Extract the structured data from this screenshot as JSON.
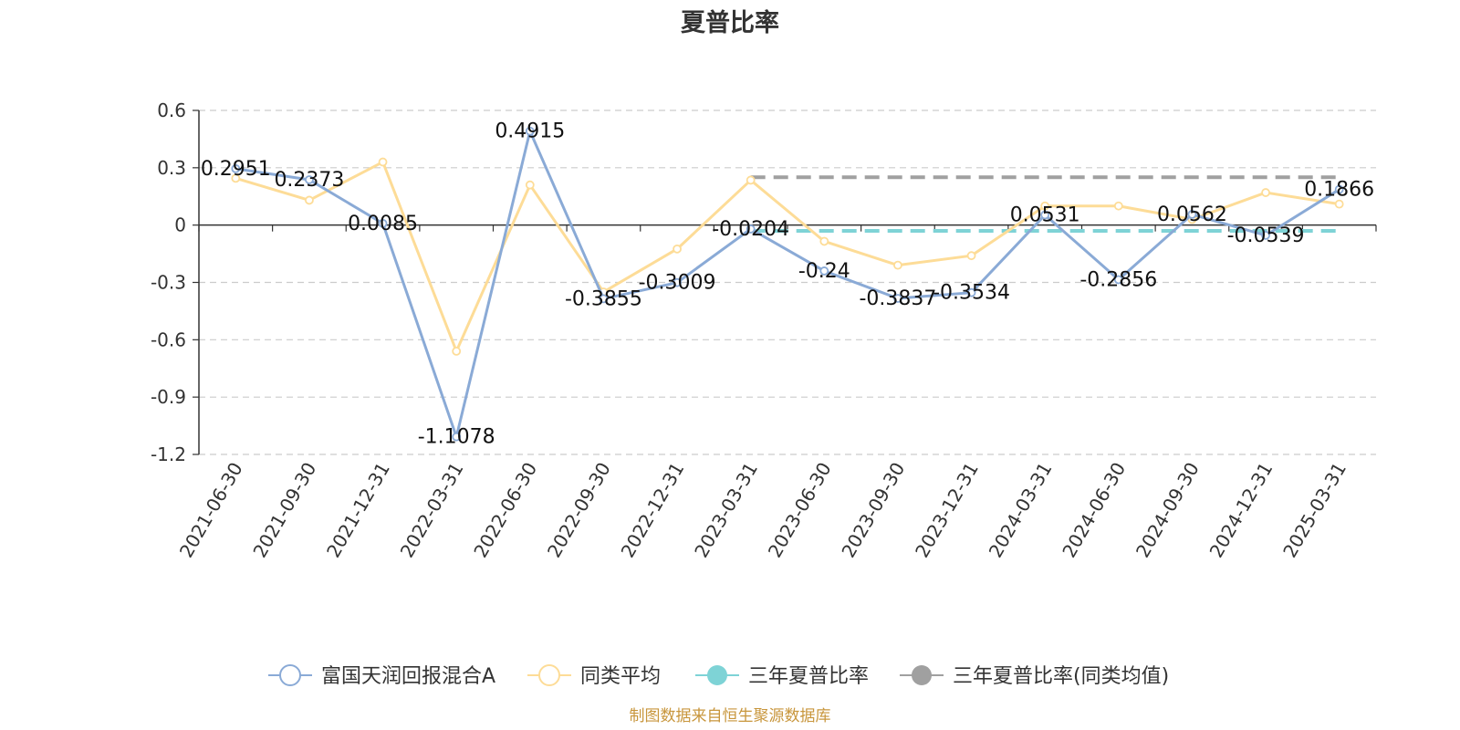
{
  "chart_data": {
    "type": "line",
    "title": "夏普比率",
    "categories": [
      "2021-06-30",
      "2021-09-30",
      "2021-12-31",
      "2022-03-31",
      "2022-06-30",
      "2022-09-30",
      "2022-12-31",
      "2023-03-31",
      "2023-06-30",
      "2023-09-30",
      "2023-12-31",
      "2024-03-31",
      "2024-06-30",
      "2024-09-30",
      "2024-12-31",
      "2025-03-31"
    ],
    "y_ticks": [
      "0.6",
      "0.3",
      "0",
      "-0.3",
      "-0.6",
      "-0.9",
      "-1.2"
    ],
    "ylim": [
      -1.2,
      0.6
    ],
    "grid": true,
    "legend_position": "bottom",
    "series": [
      {
        "name": "富国天润回报混合A",
        "color": "#8aaad6",
        "values": [
          0.2951,
          0.2373,
          0.0085,
          -1.1078,
          0.4915,
          -0.3855,
          -0.3009,
          -0.0204,
          -0.24,
          -0.3837,
          -0.3534,
          0.0531,
          -0.2856,
          0.0562,
          -0.0539,
          0.1866
        ],
        "labels": [
          "0.2951",
          "0.2373",
          "0.0085",
          "-1.1078",
          "0.4915",
          "-0.3855",
          "-0.3009",
          "-0.0204",
          "-0.24",
          "-0.3837",
          "-0.3534",
          "0.0531",
          "-0.2856",
          "0.0562",
          "-0.0539",
          "0.1866"
        ]
      },
      {
        "name": "同类平均",
        "color": "#fddc97",
        "values": [
          0.245,
          0.13,
          0.33,
          -0.66,
          0.21,
          -0.35,
          -0.125,
          0.235,
          -0.085,
          -0.21,
          -0.16,
          0.1,
          0.1,
          0.03,
          0.17,
          0.11
        ]
      },
      {
        "name": "三年夏普比率",
        "color": "#7ed3d6",
        "dashed": true,
        "value": -0.03,
        "from_index": 7,
        "to_index": 15
      },
      {
        "name": "三年夏普比率(同类均值)",
        "color": "#a0a0a0",
        "dashed": true,
        "value": 0.25,
        "from_index": 7,
        "to_index": 15
      }
    ],
    "source": "制图数据来自恒生聚源数据库"
  }
}
